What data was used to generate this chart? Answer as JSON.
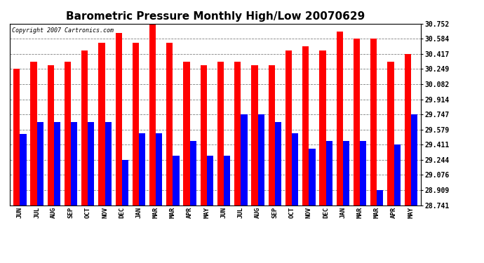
{
  "title": "Barometric Pressure Monthly High/Low 20070629",
  "copyright": "Copyright 2007 Cartronics.com",
  "labels": [
    "JUN",
    "JUL",
    "AUG",
    "SEP",
    "OCT",
    "NOV",
    "DEC",
    "JAN",
    "MAR",
    "MAR",
    "APR",
    "MAY",
    "JUN",
    "JUL",
    "AUG",
    "SEP",
    "OCT",
    "NOV",
    "DEC",
    "JAN",
    "MAR",
    "MAR",
    "APR",
    "MAY"
  ],
  "highs": [
    30.249,
    30.333,
    30.29,
    30.333,
    30.458,
    30.54,
    30.65,
    30.54,
    30.752,
    30.54,
    30.332,
    30.29,
    30.332,
    30.332,
    30.29,
    30.29,
    30.458,
    30.5,
    30.458,
    30.665,
    30.584,
    30.584,
    30.332,
    30.417
  ],
  "lows": [
    29.53,
    29.663,
    29.663,
    29.663,
    29.663,
    29.663,
    29.244,
    29.537,
    29.537,
    29.289,
    29.454,
    29.289,
    29.289,
    29.747,
    29.747,
    29.663,
    29.54,
    29.37,
    29.454,
    29.454,
    29.454,
    28.909,
    29.411,
    29.747
  ],
  "ymin": 28.741,
  "ymax": 30.752,
  "yticks": [
    28.741,
    28.909,
    29.076,
    29.244,
    29.411,
    29.579,
    29.747,
    29.914,
    30.082,
    30.249,
    30.417,
    30.584,
    30.752
  ],
  "high_color": "#ff0000",
  "low_color": "#0000ff",
  "bg_color": "#ffffff",
  "plot_bg": "#ffffff",
  "grid_color": "#808080",
  "title_fontsize": 11,
  "bar_width": 0.38
}
